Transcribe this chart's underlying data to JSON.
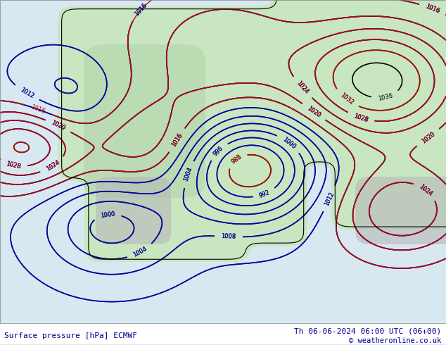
{
  "title_left": "Surface pressure [hPa] ECMWF",
  "title_right": "Th 06-06-2024 06:00 UTC (06+00)",
  "copyright": "© weatheronline.co.uk",
  "bg_color": "#d8e8f0",
  "land_color_light": "#c8e6c0",
  "land_color_dark": "#a8c8a0",
  "contour_blue": "#0000cc",
  "contour_red": "#cc0000",
  "contour_black": "#000000",
  "bottom_bar_color": "#ffffff",
  "title_color": "#00008b",
  "copyright_color": "#00008b",
  "figsize": [
    6.34,
    4.9
  ],
  "dpi": 100
}
